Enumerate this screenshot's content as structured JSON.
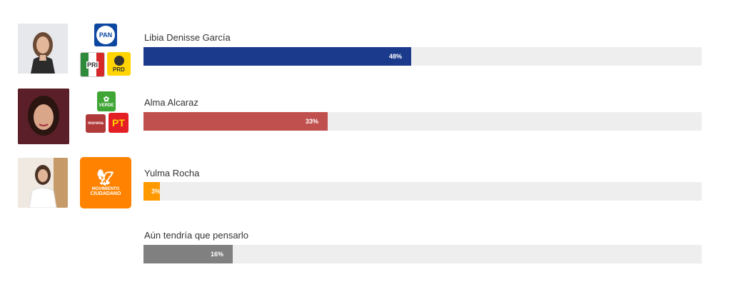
{
  "chart_data": {
    "type": "bar",
    "orientation": "horizontal",
    "categories": [
      "Libia Denisse García",
      "Alma Alcaraz",
      "Yulma Rocha",
      "Aún tendría que pensarlo"
    ],
    "values": [
      48,
      33,
      3,
      16
    ],
    "value_labels": [
      "48%",
      "33%",
      "3%",
      "16%"
    ],
    "xlim": [
      0,
      100
    ],
    "colors": [
      "#1b3a8c",
      "#c0504d",
      "#ff9900",
      "#808080"
    ]
  },
  "logos": {
    "pan": "PAN",
    "pri": "PRI",
    "prd": "PRD",
    "verde": "VERDE",
    "morena": "morena",
    "pt": "PT",
    "mc_line1": "MOVIMIENTO",
    "mc_line2": "CIUDADANO"
  }
}
